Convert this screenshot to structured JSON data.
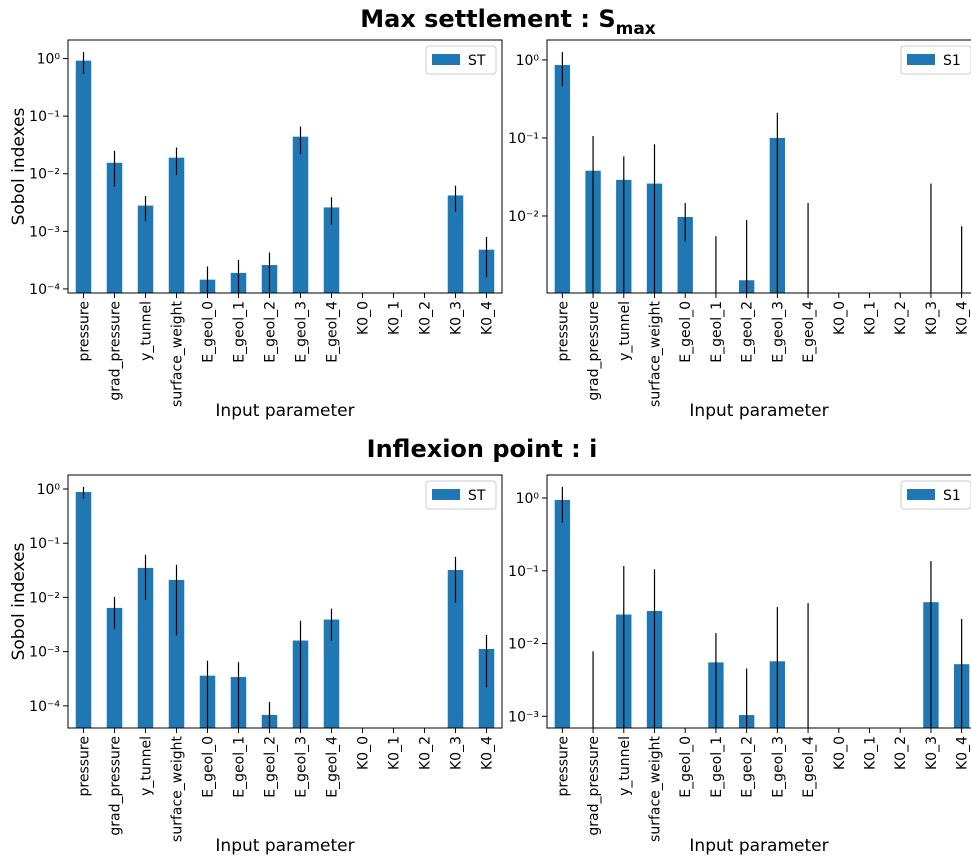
{
  "titles": [
    {
      "text": "Max settlement : S",
      "subscript": "max"
    },
    {
      "text": "Inflexion point : i"
    }
  ],
  "chart_data": [
    {
      "type": "bar",
      "ylabel": "Sobol indexes",
      "xlabel": "Input parameter",
      "log_y": true,
      "legend": "upper right",
      "categories": [
        "pressure",
        "grad_pressure",
        "y_tunnel",
        "surface_weight",
        "E_geol_0",
        "E_geol_1",
        "E_geol_2",
        "E_geol_3",
        "E_geol_4",
        "K0_0",
        "K0_1",
        "K0_2",
        "K0_3",
        "K0_4"
      ],
      "series": [
        {
          "name": "ST",
          "color": "#1f77b4",
          "values": [
            0.92,
            0.0155,
            0.0028,
            0.019,
            0.000145,
            0.00019,
            0.00026,
            0.044,
            0.0026,
            null,
            null,
            null,
            0.0042,
            0.00048
          ],
          "errors": [
            0.38,
            0.0095,
            0.0013,
            0.0095,
            0.0001,
            0.00013,
            0.00017,
            0.022,
            0.0013,
            null,
            null,
            null,
            0.002,
            0.00032
          ]
        }
      ],
      "ylim": [
        8.5e-05,
        2.1
      ],
      "yticks": [
        {
          "value": 1,
          "label": "10⁰"
        },
        {
          "value": 0.1,
          "label": "10⁻¹"
        },
        {
          "value": 0.01,
          "label": "10⁻²"
        },
        {
          "value": 0.001,
          "label": "10⁻³"
        },
        {
          "value": 0.0001,
          "label": "10⁻⁴"
        }
      ]
    },
    {
      "type": "bar",
      "xlabel": "Input parameter",
      "log_y": true,
      "legend": "upper right",
      "categories": [
        "pressure",
        "grad_pressure",
        "y_tunnel",
        "surface_weight",
        "E_geol_0",
        "E_geol_1",
        "E_geol_2",
        "E_geol_3",
        "E_geol_4",
        "K0_0",
        "K0_1",
        "K0_2",
        "K0_3",
        "K0_4"
      ],
      "series": [
        {
          "name": "S1",
          "color": "#1f77b4",
          "values": [
            0.86,
            0.038,
            0.029,
            0.026,
            0.0097,
            0,
            0.0015,
            0.1,
            0,
            0,
            0,
            0,
            0,
            0
          ],
          "errors": [
            0.4,
            0.068,
            0.029,
            0.057,
            0.005,
            0.0055,
            0.0074,
            0.11,
            0.0147,
            0,
            0,
            0,
            0.026,
            0.0074
          ]
        }
      ],
      "ylim": [
        0.00103,
        1.8
      ],
      "yticks": [
        {
          "value": 1,
          "label": "10⁰"
        },
        {
          "value": 0.1,
          "label": "10⁻¹"
        },
        {
          "value": 0.01,
          "label": "10⁻²"
        }
      ]
    },
    {
      "type": "bar",
      "ylabel": "Sobol indexes",
      "xlabel": "Input parameter",
      "log_y": true,
      "legend": "upper right",
      "categories": [
        "pressure",
        "grad_pressure",
        "y_tunnel",
        "surface_weight",
        "E_geol_0",
        "E_geol_1",
        "E_geol_2",
        "E_geol_3",
        "E_geol_4",
        "K0_0",
        "K0_1",
        "K0_2",
        "K0_3",
        "K0_4"
      ],
      "series": [
        {
          "name": "ST",
          "color": "#1f77b4",
          "values": [
            0.88,
            0.0064,
            0.035,
            0.021,
            0.00036,
            0.00034,
            6.8e-05,
            0.0016,
            0.0039,
            null,
            null,
            null,
            0.032,
            0.00112
          ],
          "errors": [
            0.21,
            0.0038,
            0.026,
            0.019,
            0.00032,
            0.0003,
            5e-05,
            0.0021,
            0.0023,
            null,
            null,
            null,
            0.024,
            0.0009
          ]
        }
      ],
      "ylim": [
        3.9e-05,
        1.81
      ],
      "yticks": [
        {
          "value": 1,
          "label": "10⁰"
        },
        {
          "value": 0.1,
          "label": "10⁻¹"
        },
        {
          "value": 0.01,
          "label": "10⁻²"
        },
        {
          "value": 0.001,
          "label": "10⁻³"
        },
        {
          "value": 0.0001,
          "label": "10⁻⁴"
        }
      ]
    },
    {
      "type": "bar",
      "xlabel": "Input parameter",
      "log_y": true,
      "legend": "upper right",
      "categories": [
        "pressure",
        "grad_pressure",
        "y_tunnel",
        "surface_weight",
        "E_geol_0",
        "E_geol_1",
        "E_geol_2",
        "E_geol_3",
        "E_geol_4",
        "K0_0",
        "K0_1",
        "K0_2",
        "K0_3",
        "K0_4"
      ],
      "series": [
        {
          "name": "S1",
          "color": "#1f77b4",
          "values": [
            0.94,
            0,
            0.025,
            0.028,
            0,
            0.0055,
            0.00104,
            0.0057,
            0,
            0,
            0,
            0,
            0.037,
            0.0052
          ],
          "errors": [
            0.48,
            0.0078,
            0.091,
            0.077,
            0,
            0.0084,
            0.0035,
            0.026,
            0.036,
            0,
            0,
            0,
            0.099,
            0.0166
          ]
        }
      ],
      "ylim": [
        0.00069,
        2.07
      ],
      "yticks": [
        {
          "value": 1,
          "label": "10⁰"
        },
        {
          "value": 0.1,
          "label": "10⁻¹"
        },
        {
          "value": 0.01,
          "label": "10⁻²"
        },
        {
          "value": 0.001,
          "label": "10⁻³"
        }
      ]
    }
  ]
}
